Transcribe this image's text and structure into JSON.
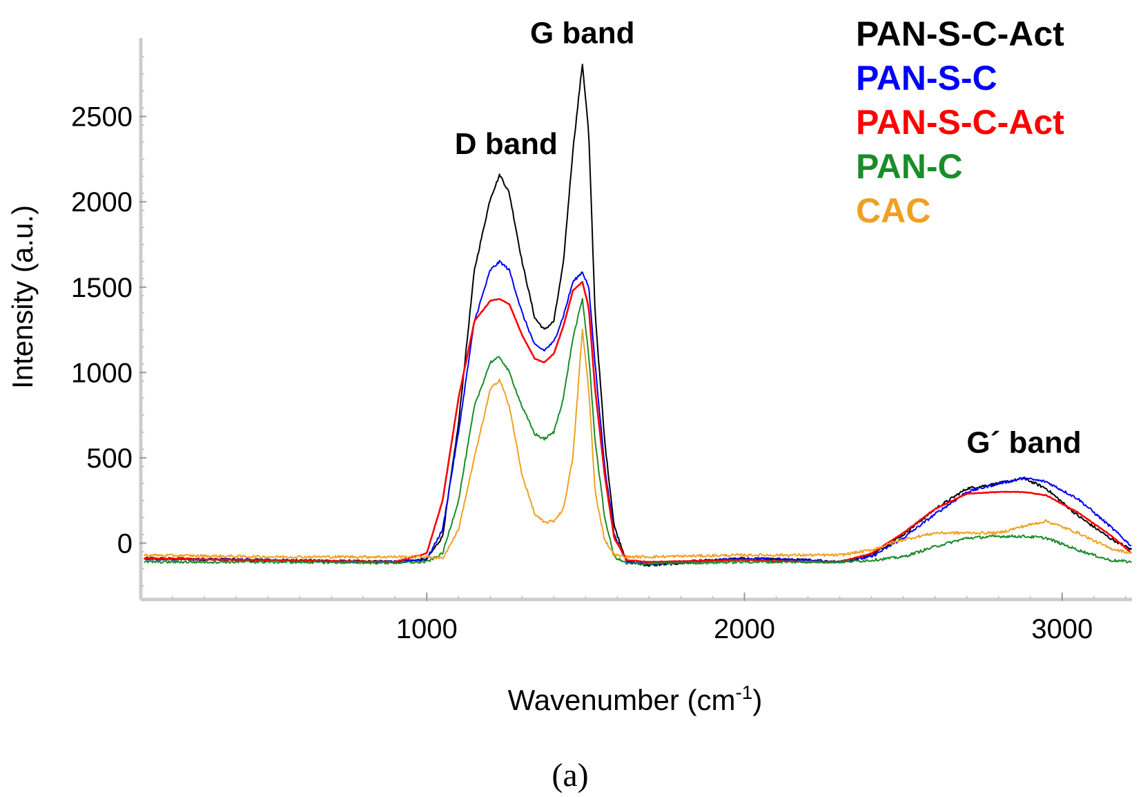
{
  "chart_data": {
    "type": "line",
    "title": "",
    "xlabel": "Wavenumber (cm",
    "xlabel_sup": "-1",
    "xlabel_close": ")",
    "ylabel": "Intensity (a.u.)",
    "xlim": [
      100,
      3220
    ],
    "ylim": [
      -330,
      2960
    ],
    "xticks": [
      1000,
      2000,
      3000
    ],
    "yticks": [
      0,
      500,
      1000,
      1500,
      2000,
      2500
    ],
    "grid": false,
    "legend_position": "top-right",
    "annotations": [
      {
        "name": "d-band",
        "text": "D band",
        "x": 1250,
        "y": 2280
      },
      {
        "name": "g-band",
        "text": "G band",
        "x": 1490,
        "y": 2930
      },
      {
        "name": "g-prime-band",
        "text": "G´ band",
        "x": 2880,
        "y": 530
      }
    ],
    "caption": "(a)",
    "series": [
      {
        "name": "PAN-S-C-Act",
        "color": "#000000",
        "x": [
          100,
          500,
          900,
          1000,
          1050,
          1100,
          1150,
          1200,
          1230,
          1260,
          1300,
          1340,
          1370,
          1400,
          1430,
          1460,
          1490,
          1510,
          1530,
          1560,
          1590,
          1630,
          1700,
          2000,
          2200,
          2300,
          2400,
          2500,
          2600,
          2700,
          2800,
          2880,
          2950,
          3050,
          3150,
          3220
        ],
        "y": [
          -90,
          -100,
          -110,
          -95,
          40,
          700,
          1600,
          2020,
          2160,
          2050,
          1650,
          1320,
          1250,
          1300,
          1640,
          2300,
          2810,
          2400,
          1350,
          600,
          100,
          -110,
          -130,
          -90,
          -100,
          -110,
          -70,
          50,
          200,
          320,
          350,
          380,
          320,
          160,
          30,
          -40
        ]
      },
      {
        "name": "PAN-S-C",
        "color": "#0000ff",
        "x": [
          100,
          500,
          900,
          1000,
          1050,
          1100,
          1150,
          1200,
          1230,
          1260,
          1300,
          1340,
          1370,
          1400,
          1430,
          1460,
          1490,
          1510,
          1530,
          1560,
          1590,
          1630,
          1700,
          2000,
          2200,
          2300,
          2400,
          2500,
          2600,
          2700,
          2800,
          2880,
          2950,
          3050,
          3150,
          3220
        ],
        "y": [
          -90,
          -100,
          -110,
          -95,
          80,
          650,
          1300,
          1600,
          1650,
          1600,
          1350,
          1160,
          1130,
          1180,
          1330,
          1530,
          1590,
          1500,
          1050,
          450,
          50,
          -110,
          -120,
          -90,
          -100,
          -110,
          -80,
          30,
          170,
          300,
          350,
          380,
          360,
          260,
          100,
          -20
        ]
      },
      {
        "name": "PAN-S-C-Act",
        "color": "#ff0000",
        "x": [
          100,
          500,
          900,
          1000,
          1050,
          1100,
          1150,
          1200,
          1230,
          1260,
          1300,
          1340,
          1370,
          1400,
          1430,
          1460,
          1490,
          1510,
          1530,
          1560,
          1590,
          1630,
          1700,
          2000,
          2200,
          2300,
          2400,
          2500,
          2600,
          2700,
          2800,
          2880,
          2950,
          3050,
          3150,
          3220
        ],
        "y": [
          -90,
          -100,
          -110,
          -60,
          250,
          850,
          1300,
          1420,
          1430,
          1400,
          1220,
          1080,
          1060,
          1110,
          1270,
          1480,
          1530,
          1380,
          900,
          400,
          30,
          -100,
          -110,
          -100,
          -110,
          -110,
          -60,
          60,
          200,
          290,
          300,
          300,
          280,
          180,
          50,
          -60
        ]
      },
      {
        "name": "PAN-C",
        "color": "#1a8c2a",
        "x": [
          100,
          500,
          900,
          1000,
          1050,
          1100,
          1150,
          1200,
          1230,
          1260,
          1300,
          1340,
          1370,
          1400,
          1430,
          1460,
          1490,
          1510,
          1530,
          1560,
          1590,
          1630,
          1700,
          2000,
          2200,
          2300,
          2400,
          2500,
          2600,
          2700,
          2800,
          2880,
          2950,
          3050,
          3150,
          3220
        ],
        "y": [
          -110,
          -110,
          -115,
          -110,
          -60,
          250,
          800,
          1060,
          1090,
          1000,
          800,
          640,
          610,
          650,
          850,
          1200,
          1430,
          1100,
          600,
          150,
          -80,
          -120,
          -120,
          -110,
          -110,
          -110,
          -100,
          -80,
          -20,
          30,
          40,
          40,
          30,
          -40,
          -100,
          -110
        ]
      },
      {
        "name": "CAC",
        "color": "#f0a020",
        "x": [
          100,
          500,
          900,
          1000,
          1050,
          1100,
          1150,
          1200,
          1230,
          1260,
          1300,
          1340,
          1370,
          1400,
          1430,
          1460,
          1490,
          1510,
          1530,
          1560,
          1590,
          1630,
          1700,
          2000,
          2200,
          2300,
          2400,
          2500,
          2600,
          2700,
          2800,
          2880,
          2950,
          3050,
          3150,
          3220
        ],
        "y": [
          -70,
          -80,
          -80,
          -80,
          -90,
          80,
          500,
          900,
          960,
          800,
          400,
          170,
          120,
          130,
          200,
          500,
          1250,
          900,
          300,
          20,
          -70,
          -80,
          -80,
          -70,
          -70,
          -70,
          -40,
          20,
          60,
          60,
          60,
          100,
          130,
          60,
          -30,
          -60
        ]
      }
    ]
  }
}
